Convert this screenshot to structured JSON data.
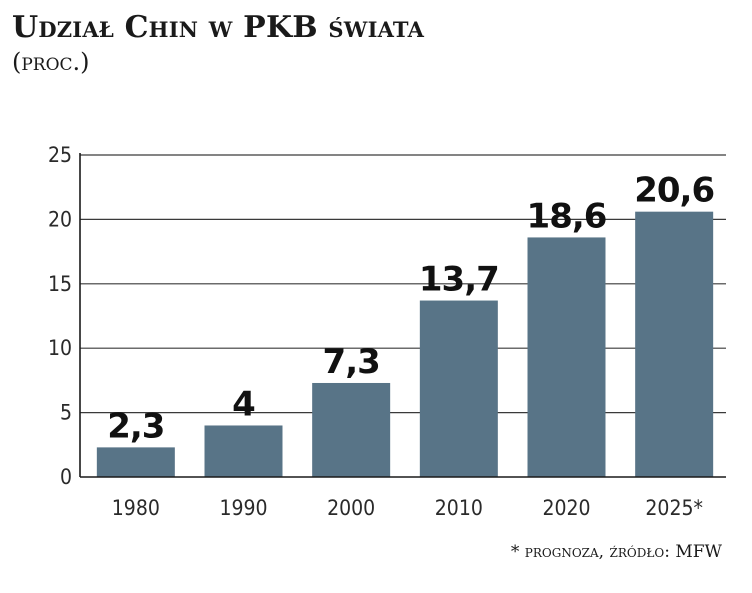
{
  "header": {
    "title": "Udział Chin w PKB świata",
    "subtitle": "(proc.)"
  },
  "footer": {
    "note": "* prognoza, źródło: MFW"
  },
  "colors": {
    "bar": "#587487",
    "grid": "#3a3a3a",
    "axis": "#1a1a1a"
  },
  "chart_data": {
    "type": "bar",
    "categories": [
      "1980",
      "1990",
      "2000",
      "2010",
      "2020",
      "2025*"
    ],
    "values": [
      2.3,
      4,
      7.3,
      13.7,
      18.6,
      20.6
    ],
    "value_labels": [
      "2,3",
      "4",
      "7,3",
      "13,7",
      "18,6",
      "20,6"
    ],
    "yticks": [
      0,
      5,
      10,
      15,
      20,
      25
    ],
    "ylim": [
      0,
      25
    ],
    "grid": true,
    "legend": "none"
  }
}
